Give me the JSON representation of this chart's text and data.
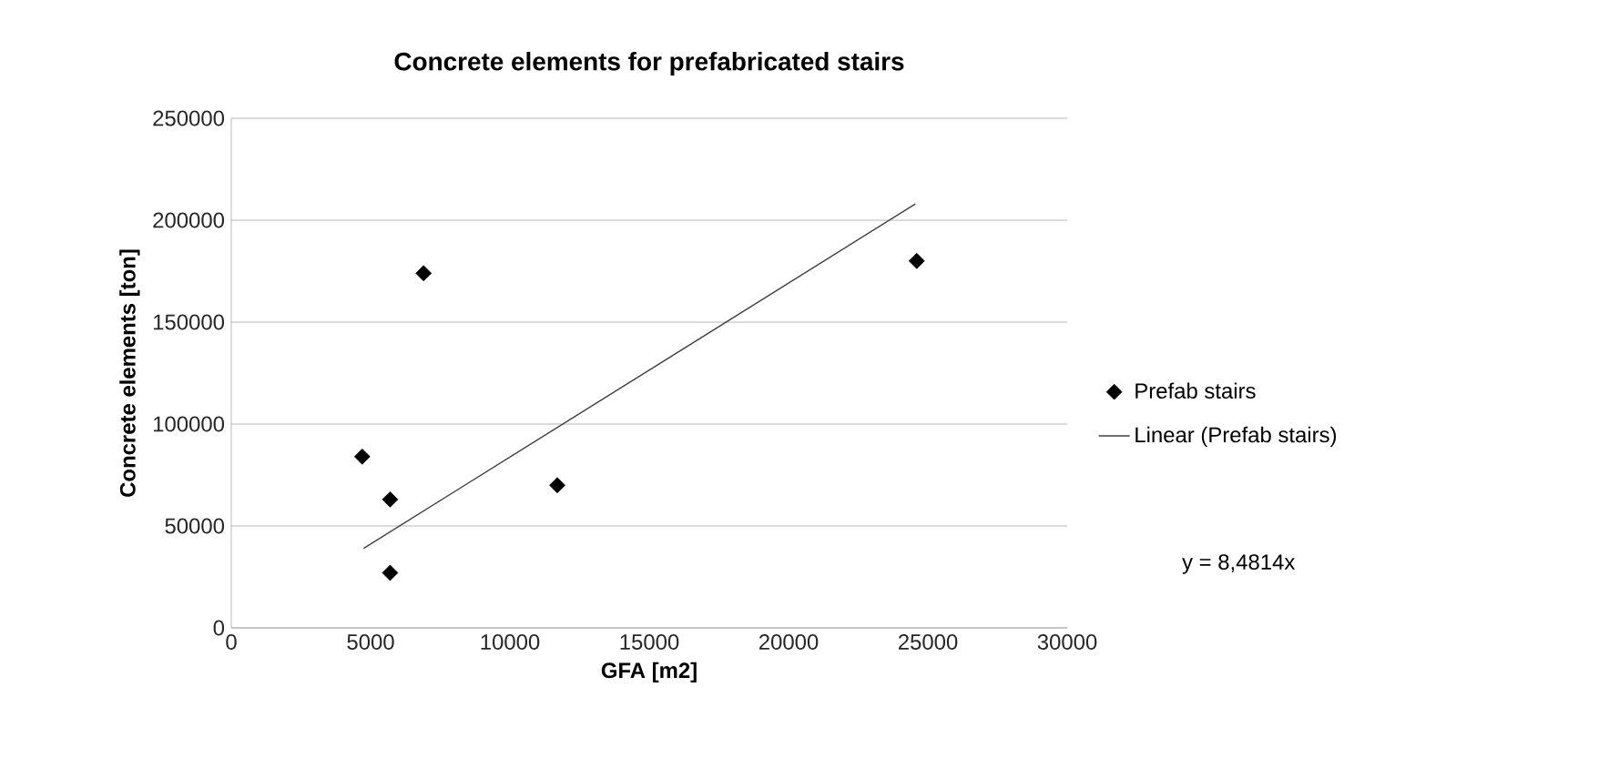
{
  "chart_data": {
    "type": "scatter",
    "title": "Concrete elements for prefabricated stairs",
    "xlabel": "GFA [m2]",
    "ylabel": "Concrete elements [ton]",
    "xlim": [
      0,
      30000
    ],
    "xticks": [
      0,
      5000,
      10000,
      15000,
      20000,
      25000,
      30000
    ],
    "ylim": [
      0,
      250000
    ],
    "yticks": [
      0,
      50000,
      100000,
      150000,
      200000,
      250000
    ],
    "grid": "y",
    "legend": "right",
    "annotations": [
      "y = 8,4814x"
    ],
    "series": [
      {
        "name": "Prefab stairs",
        "marker": "diamond",
        "color": "#000000",
        "x": [
          4700,
          5700,
          5700,
          6900,
          11700,
          24600
        ],
        "values": [
          84000,
          63000,
          27000,
          174000,
          70000,
          180000
        ]
      },
      {
        "name": "Linear (Prefab stairs)",
        "type": "line",
        "color": "#404040",
        "x": [
          4750,
          24550
        ],
        "values": [
          39000,
          208000
        ]
      }
    ]
  }
}
